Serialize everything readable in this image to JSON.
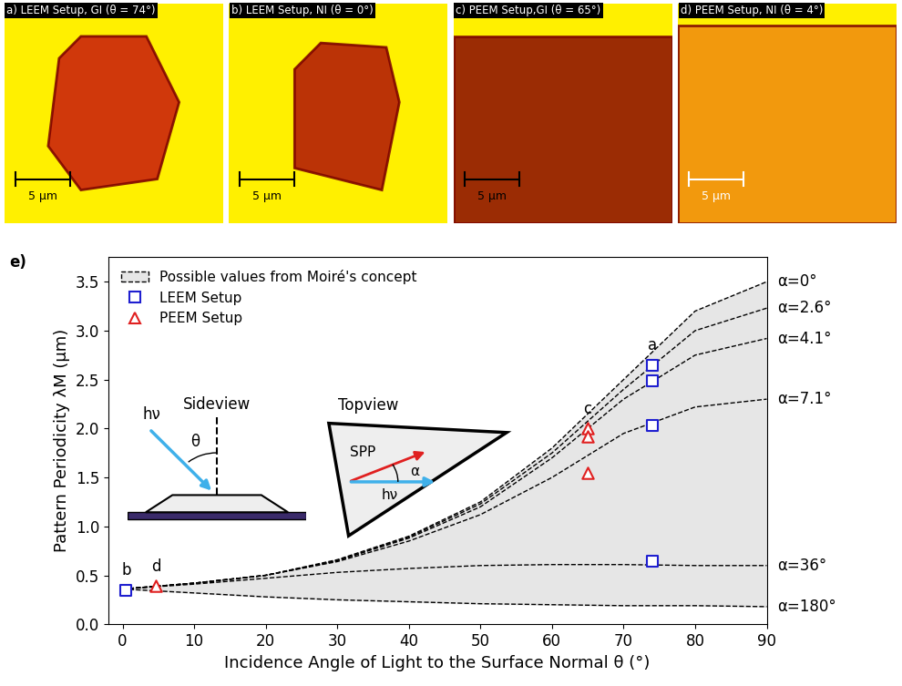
{
  "panels": [
    {
      "label": "a) LEEM Setup, GI (θ = 74°)",
      "scale_bar": "5 µm"
    },
    {
      "label": "b) LEEM Setup, NI (θ = 0°)",
      "scale_bar": "5 µm"
    },
    {
      "label": "c) PEEM Setup,GI (θ = 65°)",
      "scale_bar": "5 µm"
    },
    {
      "label": "d) PEEM Setup, NI (θ = 4°)",
      "scale_bar": "5 µm"
    }
  ],
  "chart_data": {
    "type": "line",
    "panel_label": "e)",
    "x_label": "Incidence Angle of Light to the Surface Normal θ (°)",
    "y_label": "Pattern Periodicity λM (µm)",
    "xlim": [
      -2,
      90
    ],
    "ylim": [
      0,
      3.75
    ],
    "xticks": [
      0,
      10,
      20,
      30,
      40,
      50,
      60,
      70,
      80,
      90
    ],
    "yticks": [
      {
        "value": 0.0,
        "label": "0.0"
      },
      {
        "value": 0.5,
        "label": "0.5"
      },
      {
        "value": 1.0,
        "label": "1.0"
      },
      {
        "value": 1.5,
        "label": "1.5"
      },
      {
        "value": 2.0,
        "label": "2.0"
      },
      {
        "value": 2.5,
        "label": "2.5"
      },
      {
        "value": 3.0,
        "label": "3.0"
      },
      {
        "value": 3.5,
        "label": "3.5"
      }
    ],
    "legend": "upper left",
    "x": [
      0,
      10,
      20,
      30,
      40,
      50,
      60,
      70,
      80,
      90
    ],
    "series": [
      {
        "name": "Possible values from Moiré's concept",
        "type": "area",
        "color": "#e6e6e6",
        "values": [
          0.36,
          0.42,
          0.5,
          0.66,
          0.9,
          1.25,
          1.8,
          2.5,
          3.2,
          3.5
        ],
        "lower": [
          0.36,
          0.32,
          0.28,
          0.25,
          0.23,
          0.21,
          0.2,
          0.19,
          0.19,
          0.18
        ]
      },
      {
        "name": "α=0°",
        "type": "line",
        "color": "#000000",
        "line_style": "dashed",
        "values": [
          0.36,
          0.42,
          0.5,
          0.66,
          0.9,
          1.25,
          1.8,
          2.5,
          3.2,
          3.5
        ]
      },
      {
        "name": "α=2.6°",
        "type": "line",
        "color": "#000000",
        "line_style": "dashed",
        "values": [
          0.36,
          0.42,
          0.5,
          0.65,
          0.89,
          1.23,
          1.75,
          2.4,
          3.0,
          3.23
        ]
      },
      {
        "name": "α=4.1°",
        "type": "line",
        "color": "#000000",
        "line_style": "dashed",
        "values": [
          0.36,
          0.42,
          0.5,
          0.65,
          0.88,
          1.2,
          1.7,
          2.3,
          2.75,
          2.92
        ]
      },
      {
        "name": "α=7.1°",
        "type": "line",
        "color": "#000000",
        "line_style": "dashed",
        "values": [
          0.36,
          0.42,
          0.5,
          0.64,
          0.85,
          1.12,
          1.5,
          1.95,
          2.22,
          2.3
        ]
      },
      {
        "name": "α=36°",
        "type": "line",
        "color": "#000000",
        "line_style": "dashed",
        "values": [
          0.36,
          0.41,
          0.47,
          0.53,
          0.57,
          0.6,
          0.61,
          0.61,
          0.6,
          0.6
        ]
      },
      {
        "name": "α=180°",
        "type": "line",
        "color": "#000000",
        "line_style": "dashed",
        "values": [
          0.36,
          0.32,
          0.28,
          0.25,
          0.23,
          0.21,
          0.2,
          0.19,
          0.19,
          0.18
        ]
      },
      {
        "name": "LEEM Setup",
        "type": "scatter",
        "color": "#1f1fd0",
        "marker": "square",
        "x": [
          0.5,
          74,
          74,
          74,
          74
        ],
        "values": [
          0.35,
          2.65,
          2.49,
          2.03,
          0.64
        ]
      },
      {
        "name": "PEEM Setup",
        "type": "scatter",
        "color": "#e02020",
        "marker": "triangle",
        "x": [
          4.7,
          65,
          65,
          65
        ],
        "values": [
          0.39,
          2.0,
          1.92,
          1.55
        ]
      }
    ],
    "annotations": [
      {
        "text": "a",
        "x": 74,
        "y": 2.65
      },
      {
        "text": "b",
        "x": 0.5,
        "y": 0.35
      },
      {
        "text": "c",
        "x": 65,
        "y": 2.0
      },
      {
        "text": "d",
        "x": 4.7,
        "y": 0.39
      }
    ],
    "insets": {
      "sideview": {
        "title": "Sideview",
        "light": "hν",
        "angle": "θ"
      },
      "topview": {
        "title": "Topview",
        "spp": "SPP",
        "light": "hν",
        "angle": "α"
      }
    }
  }
}
